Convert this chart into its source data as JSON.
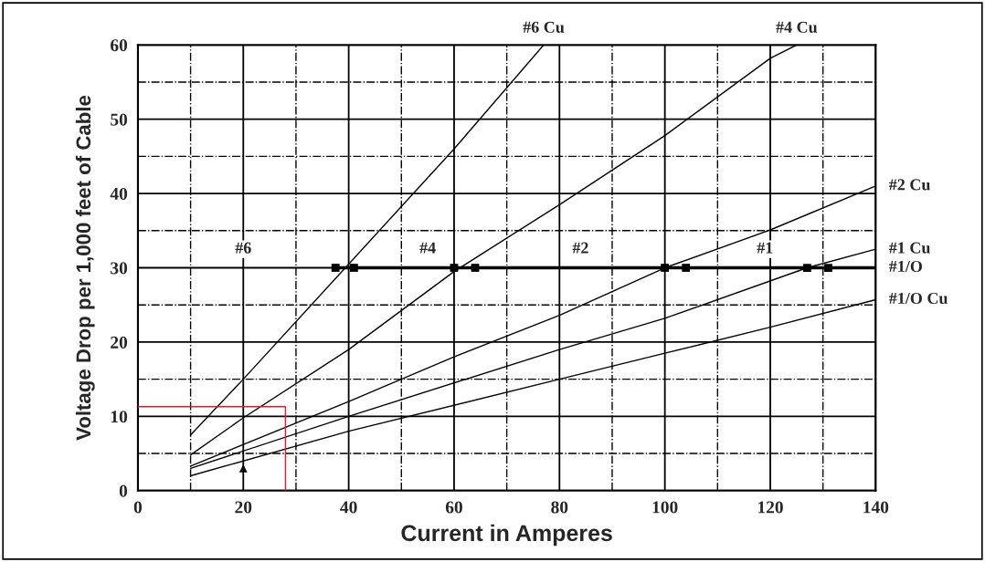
{
  "chart_data": {
    "type": "line",
    "xlabel": "Current in Amperes",
    "ylabel": "Voltage Drop per 1,000 feet of Cable",
    "xlim": [
      0,
      140
    ],
    "ylim": [
      0,
      60
    ],
    "xticks": [
      0,
      20,
      40,
      60,
      80,
      100,
      120,
      140
    ],
    "yticks": [
      0,
      10,
      20,
      30,
      40,
      50,
      60
    ],
    "grid": true,
    "legend": false,
    "marker": "none",
    "line_style": "solid",
    "series": [
      {
        "name": "#6 Cu",
        "color": "#000000",
        "x": [
          10,
          20,
          40,
          60,
          77
        ],
        "values": [
          7.5,
          15,
          30.5,
          46,
          60
        ]
      },
      {
        "name": "#4 Cu",
        "color": "#000000",
        "x": [
          10,
          20,
          40,
          60,
          80,
          100,
          120,
          125
        ],
        "values": [
          4.8,
          9.8,
          19,
          29.5,
          38.5,
          47.8,
          58.2,
          60
        ]
      },
      {
        "name": "#2 Cu",
        "color": "#000000",
        "x": [
          10,
          40,
          60,
          80,
          100,
          120,
          140
        ],
        "values": [
          3.3,
          12,
          18,
          23.6,
          30,
          35.1,
          41
        ]
      },
      {
        "name": "#1 Cu",
        "color": "#000000",
        "x": [
          10,
          40,
          80,
          100,
          127,
          140
        ],
        "values": [
          3,
          10,
          19,
          23.2,
          30,
          32.5
        ]
      },
      {
        "name": "#1/O Cu",
        "color": "#000000",
        "x": [
          10,
          40,
          80,
          100,
          120,
          140
        ],
        "values": [
          2,
          8,
          15,
          18.5,
          22,
          25.7
        ]
      },
      {
        "name": "#1/O",
        "color": "#000000",
        "x": [
          37.5,
          140
        ],
        "values": [
          30,
          30
        ]
      },
      {
        "type": "scatter",
        "color": "#000000",
        "marker": "square",
        "x": [
          37.5,
          41,
          60,
          64,
          100,
          104,
          127,
          131
        ],
        "values": [
          30,
          30,
          30,
          30,
          30,
          30,
          30,
          30
        ]
      },
      {
        "type": "scatter",
        "color": "#000000",
        "marker": "triangle",
        "x": [
          20
        ],
        "values": [
          3
        ]
      },
      {
        "color": "#e8192c",
        "x": [
          0,
          28,
          28
        ],
        "values": [
          11.3,
          11.3,
          0
        ]
      }
    ],
    "annotations": [
      {
        "text": "#6",
        "x": 20,
        "y": 32.5
      },
      {
        "text": "#4",
        "x": 55,
        "y": 32.5
      },
      {
        "text": "#2",
        "x": 84,
        "y": 32.5
      },
      {
        "text": "#1",
        "x": 119,
        "y": 32.5
      }
    ]
  }
}
